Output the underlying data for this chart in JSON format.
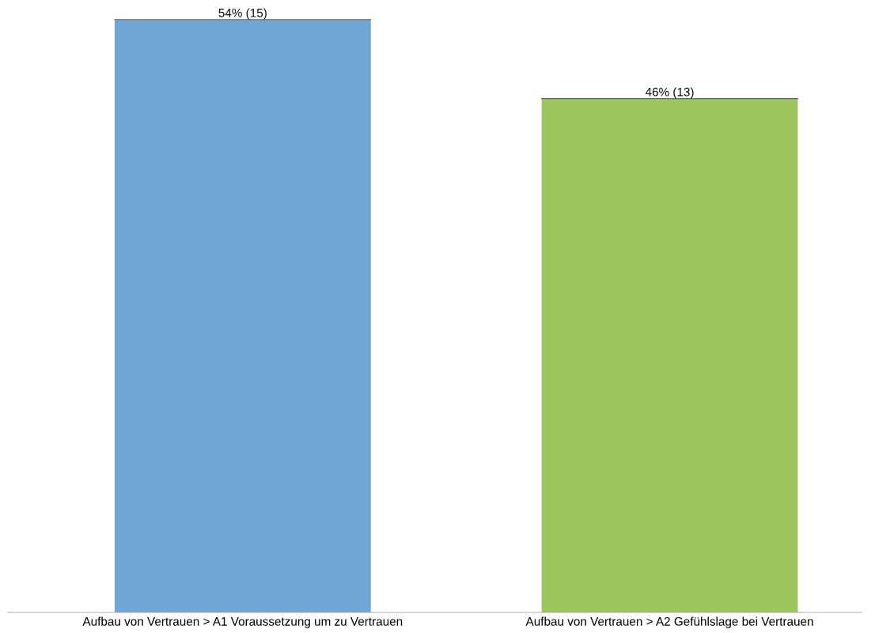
{
  "chart_data": {
    "type": "bar",
    "categories": [
      "Aufbau von Vertrauen > A1 Voraussetzung um zu Vertrauen",
      "Aufbau von Vertrauen > A2 Gefühlslage bei Vertrauen"
    ],
    "values": [
      15,
      13
    ],
    "value_labels": [
      "54% (15)",
      "46% (13)"
    ],
    "colors": [
      "#6fa6d4",
      "#9dc75c"
    ],
    "grid": false,
    "legend": false
  }
}
